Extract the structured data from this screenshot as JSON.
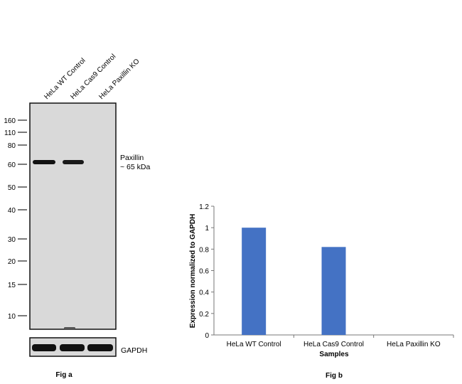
{
  "fig_a": {
    "caption": "Fig a",
    "lanes": [
      "HeLa WT Control",
      "HeLa Cas9 Control",
      "HeLa Paxillin KO"
    ],
    "markers": [
      "160",
      "110",
      "80",
      "60",
      "50",
      "40",
      "30",
      "20",
      "15",
      "10"
    ],
    "band_label": "Paxillin",
    "band_size": "~ 65 kDa",
    "loading_control": "GAPDH"
  },
  "chart_data": {
    "type": "bar",
    "title": "",
    "caption": "Fig b",
    "categories": [
      "HeLa WT Control",
      "HeLa Cas9 Control",
      "HeLa Paxillin KO"
    ],
    "values": [
      1.0,
      0.82,
      0
    ],
    "xlabel": "Samples",
    "ylabel": "Expression normalized to GAPDH",
    "ylim": [
      0,
      1.2
    ],
    "yticks": [
      "0",
      "0.2",
      "0.4",
      "0.6",
      "0.8",
      "1",
      "1.2"
    ],
    "grid": false,
    "bar_color": "#4472C4"
  }
}
